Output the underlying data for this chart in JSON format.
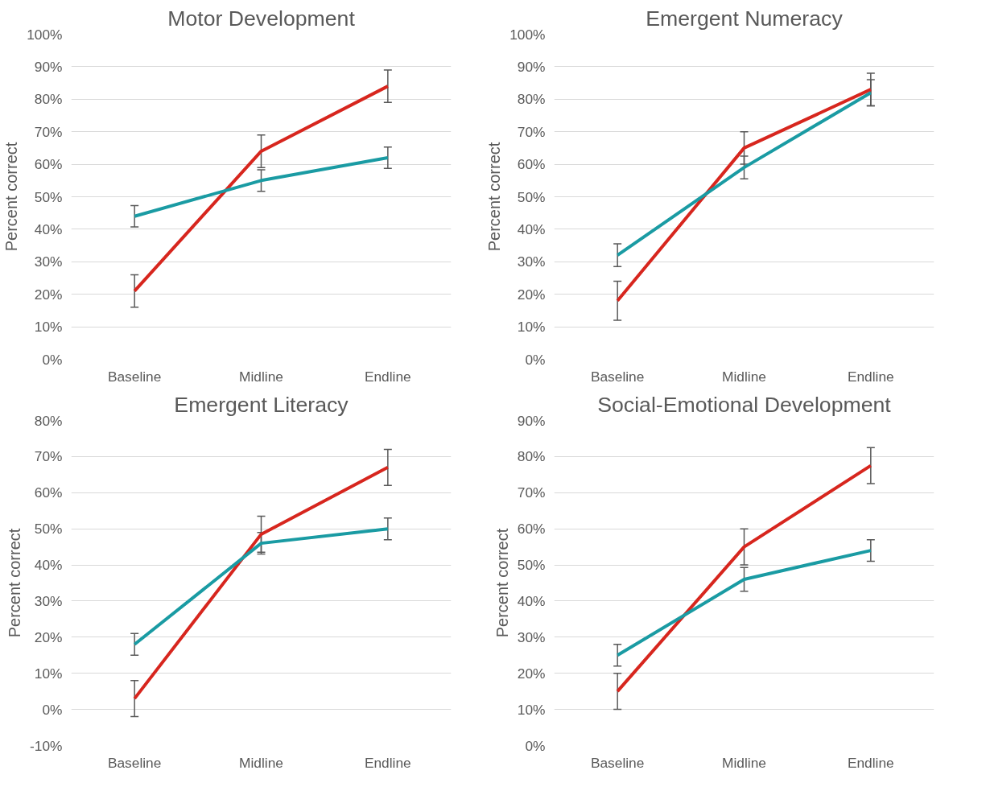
{
  "chart_data": [
    {
      "type": "line",
      "title": "Motor Development",
      "ylabel": "Percent correct",
      "categories": [
        "Baseline",
        "Midline",
        "Endline"
      ],
      "ylim": [
        0,
        100
      ],
      "yticks": [
        {
          "value": 0,
          "label": "0%"
        },
        {
          "value": 10,
          "label": "10%"
        },
        {
          "value": 20,
          "label": "20%"
        },
        {
          "value": 30,
          "label": "30%"
        },
        {
          "value": 40,
          "label": "40%"
        },
        {
          "value": 50,
          "label": "50%"
        },
        {
          "value": 60,
          "label": "60%"
        },
        {
          "value": 70,
          "label": "70%"
        },
        {
          "value": 80,
          "label": "80%"
        },
        {
          "value": 90,
          "label": "90%"
        },
        {
          "value": 100,
          "label": "100%"
        }
      ],
      "grid": "y",
      "series": [
        {
          "color": "#d7261e",
          "values": [
            21,
            64,
            84
          ],
          "errors": [
            5,
            5,
            5
          ]
        },
        {
          "color": "#1a9ba3",
          "values": [
            44,
            55,
            62
          ],
          "errors": [
            3.3,
            3.3,
            3.3
          ]
        }
      ]
    },
    {
      "type": "line",
      "title": "Emergent Numeracy",
      "ylabel": "Percent correct",
      "categories": [
        "Baseline",
        "Midline",
        "Endline"
      ],
      "ylim": [
        0,
        100
      ],
      "yticks": [
        {
          "value": 0,
          "label": "0%"
        },
        {
          "value": 10,
          "label": "10%"
        },
        {
          "value": 20,
          "label": "20%"
        },
        {
          "value": 30,
          "label": "30%"
        },
        {
          "value": 40,
          "label": "40%"
        },
        {
          "value": 50,
          "label": "50%"
        },
        {
          "value": 60,
          "label": "60%"
        },
        {
          "value": 70,
          "label": "70%"
        },
        {
          "value": 80,
          "label": "80%"
        },
        {
          "value": 90,
          "label": "90%"
        },
        {
          "value": 100,
          "label": "100%"
        }
      ],
      "grid": "y",
      "series": [
        {
          "color": "#d7261e",
          "values": [
            18,
            65,
            83
          ],
          "errors": [
            6,
            5,
            5
          ]
        },
        {
          "color": "#1a9ba3",
          "values": [
            32,
            59,
            82
          ],
          "errors": [
            3.5,
            3.5,
            4
          ]
        }
      ]
    },
    {
      "type": "line",
      "title": "Emergent Literacy",
      "ylabel": "Percent correct",
      "categories": [
        "Baseline",
        "Midline",
        "Endline"
      ],
      "ylim": [
        -10,
        80
      ],
      "yticks": [
        {
          "value": -10,
          "label": "-10%"
        },
        {
          "value": 0,
          "label": "0%"
        },
        {
          "value": 10,
          "label": "10%"
        },
        {
          "value": 20,
          "label": "20%"
        },
        {
          "value": 30,
          "label": "30%"
        },
        {
          "value": 40,
          "label": "40%"
        },
        {
          "value": 50,
          "label": "50%"
        },
        {
          "value": 60,
          "label": "60%"
        },
        {
          "value": 70,
          "label": "70%"
        },
        {
          "value": 80,
          "label": "80%"
        }
      ],
      "grid": "y",
      "series": [
        {
          "color": "#d7261e",
          "values": [
            3,
            48.5,
            67
          ],
          "errors": [
            5,
            5,
            5
          ]
        },
        {
          "color": "#1a9ba3",
          "values": [
            18,
            46,
            50
          ],
          "errors": [
            3,
            3,
            3
          ]
        }
      ]
    },
    {
      "type": "line",
      "title": "Social-Emotional Development",
      "ylabel": "Percent correct",
      "categories": [
        "Baseline",
        "Midline",
        "Endline"
      ],
      "ylim": [
        0,
        90
      ],
      "yticks": [
        {
          "value": 0,
          "label": "0%"
        },
        {
          "value": 10,
          "label": "10%"
        },
        {
          "value": 20,
          "label": "20%"
        },
        {
          "value": 30,
          "label": "30%"
        },
        {
          "value": 40,
          "label": "40%"
        },
        {
          "value": 50,
          "label": "50%"
        },
        {
          "value": 60,
          "label": "60%"
        },
        {
          "value": 70,
          "label": "70%"
        },
        {
          "value": 80,
          "label": "80%"
        },
        {
          "value": 90,
          "label": "90%"
        }
      ],
      "grid": "y",
      "series": [
        {
          "color": "#d7261e",
          "values": [
            15,
            55,
            77.5
          ],
          "errors": [
            5,
            5,
            5
          ]
        },
        {
          "color": "#1a9ba3",
          "values": [
            25,
            46,
            54
          ],
          "errors": [
            3,
            3.3,
            3
          ]
        }
      ]
    }
  ]
}
